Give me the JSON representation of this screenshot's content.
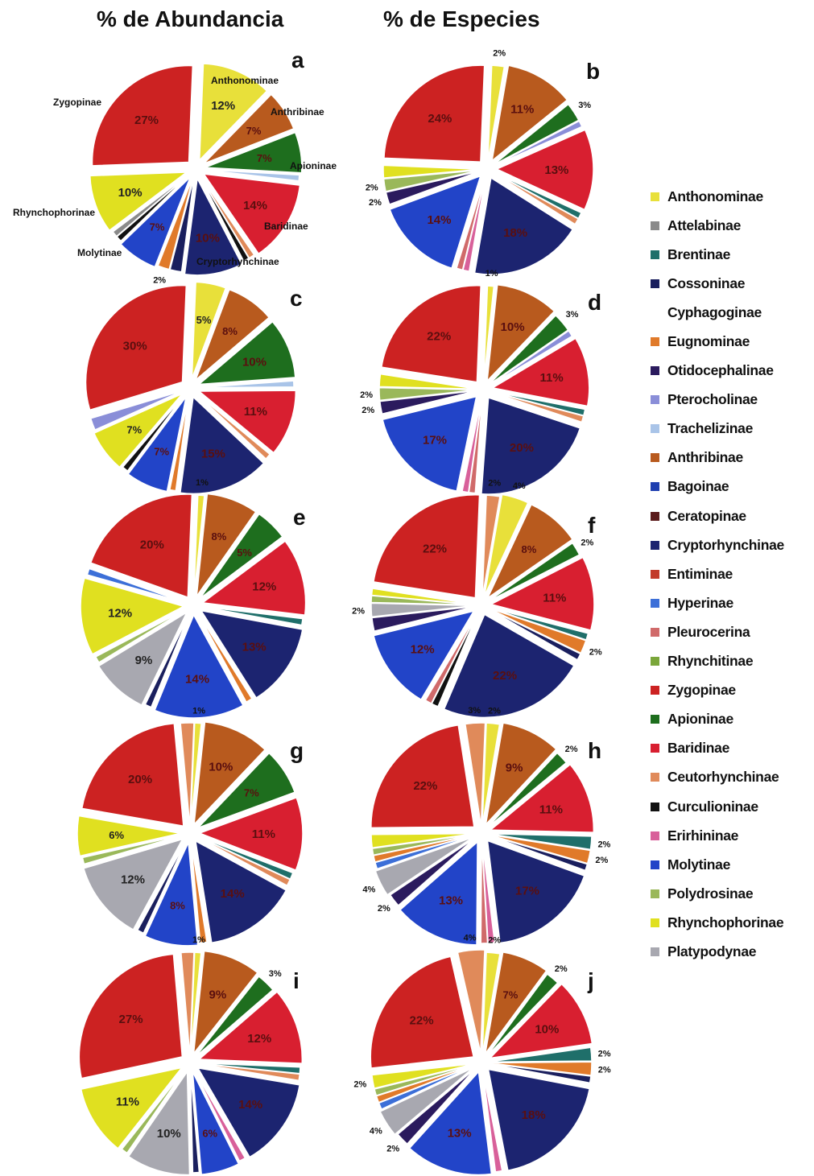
{
  "headers": {
    "abundance": "% de Abundancia",
    "species": "% de Especies"
  },
  "legend": [
    {
      "name": "Anthonominae",
      "color": "#e8e03a"
    },
    {
      "name": "Attelabinae",
      "color": "#8a8a8a"
    },
    {
      "name": "Brentinae",
      "color": "#1f6f6a"
    },
    {
      "name": "Cossoninae",
      "color": "#1a1f5e"
    },
    {
      "name": "Cyphagoginae",
      "color": "#ffffff"
    },
    {
      "name": "Eugnominae",
      "color": "#e07a2a"
    },
    {
      "name": "Otidocephalinae",
      "color": "#2b1b5e"
    },
    {
      "name": "Pterocholinae",
      "color": "#8a8ed8"
    },
    {
      "name": "Trachelizinae",
      "color": "#a9c4e8"
    },
    {
      "name": "Anthribinae",
      "color": "#b85a1e"
    },
    {
      "name": "Bagoinae",
      "color": "#1f3fb0"
    },
    {
      "name": "Ceratopinae",
      "color": "#5a1a1a"
    },
    {
      "name": "Cryptorhynchinae",
      "color": "#1c2470"
    },
    {
      "name": "Entiminae",
      "color": "#c23a2a"
    },
    {
      "name": "Hyperinae",
      "color": "#3c6fd8"
    },
    {
      "name": "Pleurocerina",
      "color": "#d06a6a"
    },
    {
      "name": "Rhynchitinae",
      "color": "#7aa63a"
    },
    {
      "name": "Zygopinae",
      "color": "#cc2222"
    },
    {
      "name": "Apioninae",
      "color": "#1e6e1e"
    },
    {
      "name": "Baridinae",
      "color": "#d81f30"
    },
    {
      "name": "Ceutorhynchinae",
      "color": "#e08a5a"
    },
    {
      "name": "Curculioninae",
      "color": "#111111"
    },
    {
      "name": "Erirhininae",
      "color": "#d8609a"
    },
    {
      "name": "Molytinae",
      "color": "#2244c8"
    },
    {
      "name": "Polydrosinae",
      "color": "#9ab85a"
    },
    {
      "name": "Rhynchophorinae",
      "color": "#e0e020"
    },
    {
      "name": "Platypodynae",
      "color": "#a8a8b0"
    }
  ],
  "chart_data": [
    {
      "id": "a",
      "type": "pie",
      "letter": "a",
      "slices": [
        {
          "name": "Anthonominae",
          "value": 12,
          "label": "12%"
        },
        {
          "name": "Anthribinae",
          "value": 7,
          "label": "7%"
        },
        {
          "name": "Apioninae",
          "value": 7,
          "label": "7%"
        },
        {
          "name": "Trachelizinae",
          "value": 1,
          "label": ""
        },
        {
          "name": "Baridinae",
          "value": 14,
          "label": "14%"
        },
        {
          "name": "Ceutorhynchinae",
          "value": 1,
          "label": ""
        },
        {
          "name": "Curculioninae",
          "value": 1,
          "label": ""
        },
        {
          "name": "Cryptorhynchinae",
          "value": 10,
          "label": "10%"
        },
        {
          "name": "Cossoninae",
          "value": 2,
          "label": ""
        },
        {
          "name": "Eugnominae",
          "value": 2,
          "label": "2%"
        },
        {
          "name": "Molytinae",
          "value": 7,
          "label": "7%"
        },
        {
          "name": "Curculioninae",
          "value": 1,
          "label": ""
        },
        {
          "name": "Attelabinae",
          "value": 1,
          "label": ""
        },
        {
          "name": "Rhynchophorinae",
          "value": 10,
          "label": "10%"
        },
        {
          "name": "Zygopinae",
          "value": 27,
          "label": "27%"
        }
      ],
      "outer_labels": [
        {
          "text": "Anthonominae",
          "x": 262,
          "y": 104
        },
        {
          "text": "Anthribinae",
          "x": 336,
          "y": 143
        },
        {
          "text": "Apioninae",
          "x": 360,
          "y": 210
        },
        {
          "text": "Baridinae",
          "x": 328,
          "y": 285
        },
        {
          "text": "Cryptorhynchinae",
          "x": 244,
          "y": 329
        },
        {
          "text": "Molytinae",
          "x": 96,
          "y": 318
        },
        {
          "text": "Rhynchophorinae",
          "x": 16,
          "y": 268
        },
        {
          "text": "Zygopinae",
          "x": 66,
          "y": 131
        }
      ]
    },
    {
      "id": "b",
      "type": "pie",
      "letter": "b",
      "slices": [
        {
          "name": "Anthonominae",
          "value": 2,
          "label": "2%"
        },
        {
          "name": "Anthribinae",
          "value": 11,
          "label": "11%"
        },
        {
          "name": "Apioninae",
          "value": 3,
          "label": "3%"
        },
        {
          "name": "Pterocholinae",
          "value": 1,
          "label": ""
        },
        {
          "name": "Baridinae",
          "value": 13,
          "label": "13%"
        },
        {
          "name": "Brentinae",
          "value": 1,
          "label": ""
        },
        {
          "name": "Ceutorhynchinae",
          "value": 1,
          "label": ""
        },
        {
          "name": "Cryptorhynchinae",
          "value": 18,
          "label": "18%"
        },
        {
          "name": "Erirhininae",
          "value": 1,
          "label": ""
        },
        {
          "name": "Pleurocerina",
          "value": 1,
          "label": ""
        },
        {
          "name": "Molytinae",
          "value": 14,
          "label": "14%"
        },
        {
          "name": "Otidocephalinae",
          "value": 2,
          "label": "2%"
        },
        {
          "name": "Polydrosinae",
          "value": 2,
          "label": "2%"
        },
        {
          "name": "Rhynchophorinae",
          "value": 2,
          "label": ""
        },
        {
          "name": "Zygopinae",
          "value": 24,
          "label": "24%"
        }
      ],
      "outer_labels": []
    },
    {
      "id": "c",
      "type": "pie",
      "letter": "c",
      "slices": [
        {
          "name": "Anthonominae",
          "value": 5,
          "label": "5%"
        },
        {
          "name": "Anthribinae",
          "value": 8,
          "label": "8%"
        },
        {
          "name": "Apioninae",
          "value": 10,
          "label": "10%"
        },
        {
          "name": "Trachelizinae",
          "value": 1,
          "label": ""
        },
        {
          "name": "Baridinae",
          "value": 11,
          "label": "11%"
        },
        {
          "name": "Ceutorhynchinae",
          "value": 1,
          "label": ""
        },
        {
          "name": "Cryptorhynchinae",
          "value": 15,
          "label": "15%"
        },
        {
          "name": "Eugnominae",
          "value": 1,
          "label": ""
        },
        {
          "name": "Molytinae",
          "value": 7,
          "label": "7%"
        },
        {
          "name": "Curculioninae",
          "value": 1,
          "label": ""
        },
        {
          "name": "Rhynchophorinae",
          "value": 7,
          "label": "7%"
        },
        {
          "name": "Pterocholinae",
          "value": 2,
          "label": ""
        },
        {
          "name": "Zygopinae",
          "value": 30,
          "label": "30%"
        }
      ],
      "outer_labels": []
    },
    {
      "id": "d",
      "type": "pie",
      "letter": "d",
      "slices": [
        {
          "name": "Anthonominae",
          "value": 1,
          "label": "1%"
        },
        {
          "name": "Anthribinae",
          "value": 10,
          "label": "10%"
        },
        {
          "name": "Apioninae",
          "value": 3,
          "label": "3%"
        },
        {
          "name": "Pterocholinae",
          "value": 1,
          "label": ""
        },
        {
          "name": "Baridinae",
          "value": 11,
          "label": "11%"
        },
        {
          "name": "Brentinae",
          "value": 1,
          "label": ""
        },
        {
          "name": "Ceutorhynchinae",
          "value": 1,
          "label": ""
        },
        {
          "name": "Cryptorhynchinae",
          "value": 20,
          "label": "20%"
        },
        {
          "name": "Pleurocerina",
          "value": 1,
          "label": ""
        },
        {
          "name": "Erirhininae",
          "value": 1,
          "label": ""
        },
        {
          "name": "Molytinae",
          "value": 17,
          "label": "17%"
        },
        {
          "name": "Otidocephalinae",
          "value": 2,
          "label": "2%"
        },
        {
          "name": "Polydrosinae",
          "value": 2,
          "label": "2%"
        },
        {
          "name": "Rhynchophorinae",
          "value": 2,
          "label": ""
        },
        {
          "name": "Zygopinae",
          "value": 22,
          "label": "22%"
        }
      ],
      "outer_labels": []
    },
    {
      "id": "e",
      "type": "pie",
      "letter": "e",
      "slices": [
        {
          "name": "Anthonominae",
          "value": 1,
          "label": "1%"
        },
        {
          "name": "Anthribinae",
          "value": 8,
          "label": "8%"
        },
        {
          "name": "Apioninae",
          "value": 5,
          "label": "5%"
        },
        {
          "name": "Baridinae",
          "value": 12,
          "label": "12%"
        },
        {
          "name": "Brentinae",
          "value": 1,
          "label": ""
        },
        {
          "name": "Cryptorhynchinae",
          "value": 13,
          "label": "13%"
        },
        {
          "name": "Eugnominae",
          "value": 1,
          "label": ""
        },
        {
          "name": "Molytinae",
          "value": 14,
          "label": "14%"
        },
        {
          "name": "Cossoninae",
          "value": 1,
          "label": ""
        },
        {
          "name": "Platypodynae",
          "value": 9,
          "label": "9%"
        },
        {
          "name": "Polydrosinae",
          "value": 1,
          "label": ""
        },
        {
          "name": "Rhynchophorinae",
          "value": 12,
          "label": "12%"
        },
        {
          "name": "Hyperinae",
          "value": 1,
          "label": ""
        },
        {
          "name": "Zygopinae",
          "value": 20,
          "label": "20%"
        }
      ],
      "outer_labels": []
    },
    {
      "id": "f",
      "type": "pie",
      "letter": "f",
      "slices": [
        {
          "name": "Ceutorhynchinae",
          "value": 2,
          "label": "2%"
        },
        {
          "name": "Anthonominae",
          "value": 4,
          "label": "4%"
        },
        {
          "name": "Anthribinae",
          "value": 8,
          "label": "8%"
        },
        {
          "name": "Apioninae",
          "value": 2,
          "label": "2%"
        },
        {
          "name": "Baridinae",
          "value": 11,
          "label": "11%"
        },
        {
          "name": "Brentinae",
          "value": 1,
          "label": ""
        },
        {
          "name": "Eugnominae",
          "value": 2,
          "label": "2%"
        },
        {
          "name": "Cossoninae",
          "value": 1,
          "label": ""
        },
        {
          "name": "Cryptorhynchinae",
          "value": 22,
          "label": "22%"
        },
        {
          "name": "Curculioninae",
          "value": 1,
          "label": ""
        },
        {
          "name": "Pleurocerina",
          "value": 1,
          "label": ""
        },
        {
          "name": "Molytinae",
          "value": 12,
          "label": "12%"
        },
        {
          "name": "Otidocephalinae",
          "value": 2,
          "label": ""
        },
        {
          "name": "Platypodynae",
          "value": 2,
          "label": "2%"
        },
        {
          "name": "Polydrosinae",
          "value": 1,
          "label": ""
        },
        {
          "name": "Rhynchophorinae",
          "value": 1,
          "label": ""
        },
        {
          "name": "Zygopinae",
          "value": 22,
          "label": "22%"
        }
      ],
      "outer_labels": []
    },
    {
      "id": "g",
      "type": "pie",
      "letter": "g",
      "slices": [
        {
          "name": "Anthonominae",
          "value": 1,
          "label": "1%"
        },
        {
          "name": "Anthribinae",
          "value": 10,
          "label": "10%"
        },
        {
          "name": "Apioninae",
          "value": 7,
          "label": "7%"
        },
        {
          "name": "Baridinae",
          "value": 11,
          "label": "11%"
        },
        {
          "name": "Brentinae",
          "value": 1,
          "label": ""
        },
        {
          "name": "Ceutorhynchinae",
          "value": 1,
          "label": ""
        },
        {
          "name": "Cryptorhynchinae",
          "value": 14,
          "label": "14%"
        },
        {
          "name": "Eugnominae",
          "value": 1,
          "label": ""
        },
        {
          "name": "Molytinae",
          "value": 8,
          "label": "8%"
        },
        {
          "name": "Cossoninae",
          "value": 1,
          "label": ""
        },
        {
          "name": "Platypodynae",
          "value": 12,
          "label": "12%"
        },
        {
          "name": "Polydrosinae",
          "value": 1,
          "label": ""
        },
        {
          "name": "Rhynchophorinae",
          "value": 6,
          "label": "6%"
        },
        {
          "name": "Zygopinae",
          "value": 20,
          "label": "20%"
        },
        {
          "name": "Ceutorhynchinae",
          "value": 2,
          "label": ""
        }
      ],
      "outer_labels": []
    },
    {
      "id": "h",
      "type": "pie",
      "letter": "h",
      "slices": [
        {
          "name": "Anthonominae",
          "value": 2,
          "label": "2%"
        },
        {
          "name": "Anthribinae",
          "value": 9,
          "label": "9%"
        },
        {
          "name": "Apioninae",
          "value": 2,
          "label": "2%"
        },
        {
          "name": "Baridinae",
          "value": 11,
          "label": "11%"
        },
        {
          "name": "Brentinae",
          "value": 2,
          "label": "2%"
        },
        {
          "name": "Eugnominae",
          "value": 2,
          "label": "2%"
        },
        {
          "name": "Cossoninae",
          "value": 1,
          "label": ""
        },
        {
          "name": "Cryptorhynchinae",
          "value": 17,
          "label": "17%"
        },
        {
          "name": "Erirhininae",
          "value": 1,
          "label": ""
        },
        {
          "name": "Pleurocerina",
          "value": 1,
          "label": ""
        },
        {
          "name": "Molytinae",
          "value": 13,
          "label": "13%"
        },
        {
          "name": "Otidocephalinae",
          "value": 2,
          "label": "2%"
        },
        {
          "name": "Platypodynae",
          "value": 4,
          "label": "4%"
        },
        {
          "name": "Hyperinae",
          "value": 1,
          "label": ""
        },
        {
          "name": "Eugnominae",
          "value": 1,
          "label": ""
        },
        {
          "name": "Polydrosinae",
          "value": 1,
          "label": ""
        },
        {
          "name": "Rhynchophorinae",
          "value": 2,
          "label": ""
        },
        {
          "name": "Zygopinae",
          "value": 22,
          "label": "22%"
        },
        {
          "name": "Ceutorhynchinae",
          "value": 3,
          "label": "3%"
        }
      ],
      "outer_labels": []
    },
    {
      "id": "i",
      "type": "pie",
      "letter": "i",
      "slices": [
        {
          "name": "Anthonominae",
          "value": 1,
          "label": "1%"
        },
        {
          "name": "Anthribinae",
          "value": 9,
          "label": "9%"
        },
        {
          "name": "Apioninae",
          "value": 3,
          "label": "3%"
        },
        {
          "name": "Baridinae",
          "value": 12,
          "label": "12%"
        },
        {
          "name": "Brentinae",
          "value": 1,
          "label": ""
        },
        {
          "name": "Ceutorhynchinae",
          "value": 1,
          "label": ""
        },
        {
          "name": "Cryptorhynchinae",
          "value": 14,
          "label": "14%"
        },
        {
          "name": "Erirhininae",
          "value": 1,
          "label": ""
        },
        {
          "name": "Molytinae",
          "value": 6,
          "label": "6%"
        },
        {
          "name": "Cossoninae",
          "value": 1,
          "label": ""
        },
        {
          "name": "Platypodynae",
          "value": 10,
          "label": "10%"
        },
        {
          "name": "Polydrosinae",
          "value": 1,
          "label": ""
        },
        {
          "name": "Rhynchophorinae",
          "value": 11,
          "label": "11%"
        },
        {
          "name": "Zygopinae",
          "value": 27,
          "label": "27%"
        },
        {
          "name": "Ceutorhynchinae",
          "value": 2,
          "label": ""
        }
      ],
      "outer_labels": []
    },
    {
      "id": "j",
      "type": "pie",
      "letter": "j",
      "slices": [
        {
          "name": "Anthonominae",
          "value": 2,
          "label": "2%"
        },
        {
          "name": "Anthribinae",
          "value": 7,
          "label": "7%"
        },
        {
          "name": "Apioninae",
          "value": 2,
          "label": "2%"
        },
        {
          "name": "Baridinae",
          "value": 10,
          "label": "10%"
        },
        {
          "name": "Brentinae",
          "value": 2,
          "label": "2%"
        },
        {
          "name": "Eugnominae",
          "value": 2,
          "label": "2%"
        },
        {
          "name": "Cossoninae",
          "value": 1,
          "label": ""
        },
        {
          "name": "Cryptorhynchinae",
          "value": 18,
          "label": "18%"
        },
        {
          "name": "Erirhininae",
          "value": 1,
          "label": ""
        },
        {
          "name": "Molytinae",
          "value": 13,
          "label": "13%"
        },
        {
          "name": "Otidocephalinae",
          "value": 2,
          "label": "2%"
        },
        {
          "name": "Platypodynae",
          "value": 4,
          "label": "4%"
        },
        {
          "name": "Hyperinae",
          "value": 1,
          "label": ""
        },
        {
          "name": "Eugnominae",
          "value": 1,
          "label": ""
        },
        {
          "name": "Polydrosinae",
          "value": 1,
          "label": ""
        },
        {
          "name": "Rhynchophorinae",
          "value": 2,
          "label": "2%"
        },
        {
          "name": "Zygopinae",
          "value": 22,
          "label": "22%"
        },
        {
          "name": "Ceutorhynchinae",
          "value": 4,
          "label": "4%"
        }
      ],
      "outer_labels": []
    }
  ]
}
